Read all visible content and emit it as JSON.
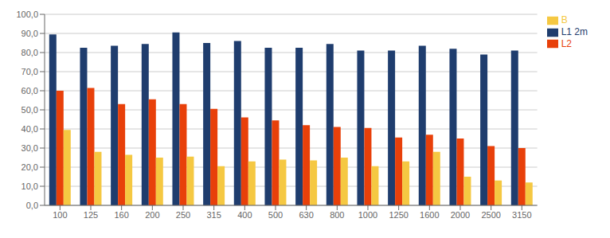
{
  "chart_data": {
    "type": "bar",
    "categories": [
      "100",
      "125",
      "160",
      "200",
      "250",
      "315",
      "400",
      "500",
      "630",
      "800",
      "1000",
      "1250",
      "1600",
      "2000",
      "2500",
      "3150"
    ],
    "series": [
      {
        "name": "L1 2m",
        "color": "#1F3D6E",
        "values": [
          89.5,
          82.5,
          83.5,
          84.5,
          90.5,
          85.0,
          86.0,
          82.5,
          82.5,
          84.5,
          81.0,
          81.0,
          83.5,
          82.0,
          79.0,
          81.0
        ]
      },
      {
        "name": "L2",
        "color": "#E8400A",
        "values": [
          60.0,
          61.5,
          53.0,
          55.5,
          53.0,
          50.5,
          46.0,
          44.5,
          42.0,
          41.0,
          40.5,
          35.5,
          37.0,
          35.0,
          31.0,
          30.0
        ]
      },
      {
        "name": "B",
        "color": "#F5C842",
        "values": [
          39.5,
          28.0,
          26.5,
          25.0,
          25.5,
          20.5,
          23.0,
          24.0,
          23.5,
          25.0,
          20.5,
          23.0,
          28.0,
          15.0,
          13.0,
          12.0
        ]
      }
    ],
    "ylim": [
      0,
      100
    ],
    "yticks": [
      {
        "value": 0,
        "label": "0,0"
      },
      {
        "value": 10,
        "label": "10,0"
      },
      {
        "value": 20,
        "label": "20,0"
      },
      {
        "value": 30,
        "label": "30,0"
      },
      {
        "value": 40,
        "label": "40,0"
      },
      {
        "value": 50,
        "label": "50,0"
      },
      {
        "value": 60,
        "label": "60,0"
      },
      {
        "value": 70,
        "label": "70,0"
      },
      {
        "value": 80,
        "label": "80,0"
      },
      {
        "value": 90,
        "label": "90,0"
      },
      {
        "value": 100,
        "label": "100,0"
      }
    ],
    "grid": true,
    "legend": "right"
  }
}
